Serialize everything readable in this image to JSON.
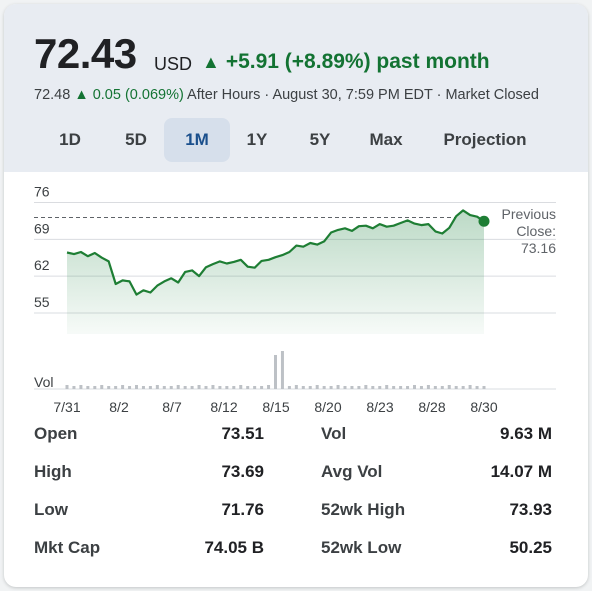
{
  "quote": {
    "price": "72.43",
    "currency": "USD",
    "change_arrow": "▲",
    "change_text": "+5.91 (+8.89%) past month",
    "after_price": "72.48",
    "after_change": "▲ 0.05 (0.069%)",
    "after_note": "After Hours · August 30, 7:59 PM EDT · Market Closed"
  },
  "colors": {
    "up_green": "#137333",
    "line_green": "#1e7e34",
    "active_tab_bg": "#d6dfeb",
    "header_bg": "#e8ecf2"
  },
  "tabs": [
    {
      "label": "1D",
      "active": false
    },
    {
      "label": "5D",
      "active": false
    },
    {
      "label": "1M",
      "active": true
    },
    {
      "label": "1Y",
      "active": false
    },
    {
      "label": "5Y",
      "active": false
    },
    {
      "label": "Max",
      "active": false
    },
    {
      "label": "Projection",
      "active": false
    }
  ],
  "chart_data": {
    "type": "area",
    "y_ticks": [
      "76",
      "69",
      "62",
      "55"
    ],
    "y_tick_values": [
      76,
      69,
      62,
      55
    ],
    "ylim": [
      51,
      78
    ],
    "x_tick_labels": [
      "7/31",
      "8/2",
      "8/7",
      "8/12",
      "8/15",
      "8/20",
      "8/23",
      "8/28",
      "8/30"
    ],
    "previous_close_label": "Previous Close:",
    "previous_close_value": "73.16",
    "previous_close": 73.16,
    "volume_label": "Vol",
    "prices": [
      66.5,
      66.2,
      66.6,
      65.8,
      66.4,
      65.5,
      64.8,
      60.5,
      61.2,
      61.0,
      58.5,
      59.3,
      58.9,
      60.2,
      61.0,
      61.6,
      60.8,
      62.8,
      63.1,
      62.0,
      63.7,
      64.3,
      64.8,
      64.4,
      64.7,
      65.1,
      63.8,
      63.6,
      64.9,
      65.1,
      65.6,
      66.0,
      66.6,
      67.8,
      67.6,
      68.3,
      68.0,
      68.6,
      70.3,
      70.8,
      71.1,
      70.6,
      71.5,
      71.6,
      71.1,
      71.9,
      71.4,
      71.6,
      72.1,
      72.6,
      72.0,
      71.7,
      71.9,
      70.5,
      70.1,
      71.2,
      73.4,
      74.5,
      73.6,
      73.3,
      72.43
    ],
    "volumes": [
      4,
      3,
      4,
      3,
      3,
      4,
      3,
      3,
      4,
      3,
      4,
      3,
      3,
      4,
      3,
      3,
      4,
      3,
      3,
      4,
      3,
      4,
      3,
      3,
      3,
      4,
      3,
      3,
      3,
      4,
      34,
      38,
      3,
      4,
      3,
      3,
      4,
      3,
      3,
      4,
      3,
      3,
      3,
      4,
      3,
      3,
      4,
      3,
      3,
      3,
      4,
      3,
      4,
      3,
      3,
      4,
      3,
      3,
      4,
      3,
      3
    ]
  },
  "stats": {
    "left": [
      {
        "label": "Open",
        "value": "73.51"
      },
      {
        "label": "High",
        "value": "73.69"
      },
      {
        "label": "Low",
        "value": "71.76"
      },
      {
        "label": "Mkt Cap",
        "value": "74.05 B"
      }
    ],
    "right": [
      {
        "label": "Vol",
        "value": "9.63 M"
      },
      {
        "label": "Avg Vol",
        "value": "14.07 M"
      },
      {
        "label": "52wk High",
        "value": "73.93"
      },
      {
        "label": "52wk Low",
        "value": "50.25"
      }
    ]
  }
}
